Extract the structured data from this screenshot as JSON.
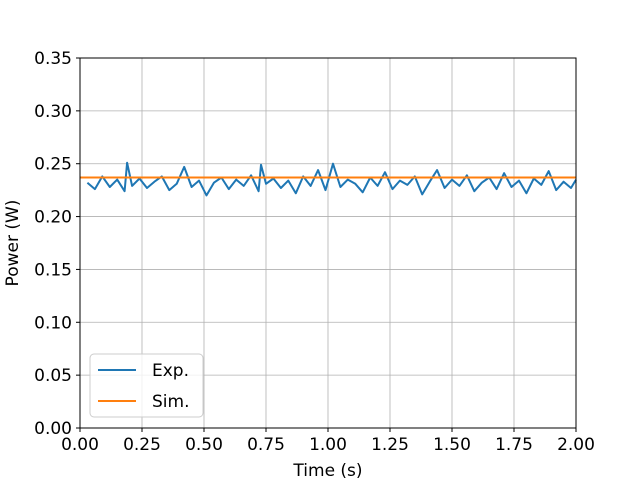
{
  "chart_data": {
    "type": "line",
    "title": "",
    "xlabel": "Time (s)",
    "ylabel": "Power (W)",
    "xlim": [
      0,
      2.0
    ],
    "ylim": [
      0,
      0.35
    ],
    "xticks": [
      0.0,
      0.25,
      0.5,
      0.75,
      1.0,
      1.25,
      1.5,
      1.75,
      2.0
    ],
    "xtick_labels": [
      "0.00",
      "0.25",
      "0.50",
      "0.75",
      "1.00",
      "1.25",
      "1.50",
      "1.75",
      "2.00"
    ],
    "yticks": [
      0.0,
      0.05,
      0.1,
      0.15,
      0.2,
      0.25,
      0.3,
      0.35
    ],
    "ytick_labels": [
      "0.00",
      "0.05",
      "0.10",
      "0.15",
      "0.20",
      "0.25",
      "0.30",
      "0.35"
    ],
    "grid": true,
    "legend_position": "lower-left",
    "series": [
      {
        "name": "Exp.",
        "color": "#1f77b4",
        "x": [
          0.03,
          0.06,
          0.09,
          0.12,
          0.15,
          0.18,
          0.19,
          0.21,
          0.24,
          0.27,
          0.3,
          0.33,
          0.36,
          0.39,
          0.42,
          0.45,
          0.48,
          0.51,
          0.54,
          0.57,
          0.6,
          0.63,
          0.66,
          0.69,
          0.72,
          0.73,
          0.75,
          0.78,
          0.81,
          0.84,
          0.87,
          0.9,
          0.93,
          0.96,
          0.99,
          1.02,
          1.05,
          1.08,
          1.11,
          1.14,
          1.17,
          1.2,
          1.23,
          1.26,
          1.29,
          1.32,
          1.35,
          1.38,
          1.41,
          1.44,
          1.47,
          1.5,
          1.53,
          1.56,
          1.59,
          1.62,
          1.65,
          1.68,
          1.71,
          1.74,
          1.77,
          1.8,
          1.83,
          1.86,
          1.89,
          1.92,
          1.95,
          1.98,
          2.0
        ],
        "values": [
          0.232,
          0.226,
          0.238,
          0.228,
          0.235,
          0.224,
          0.251,
          0.229,
          0.236,
          0.227,
          0.233,
          0.238,
          0.225,
          0.231,
          0.247,
          0.228,
          0.234,
          0.22,
          0.232,
          0.237,
          0.226,
          0.235,
          0.229,
          0.239,
          0.224,
          0.249,
          0.231,
          0.236,
          0.227,
          0.234,
          0.222,
          0.238,
          0.229,
          0.244,
          0.225,
          0.25,
          0.228,
          0.235,
          0.231,
          0.223,
          0.237,
          0.229,
          0.242,
          0.226,
          0.234,
          0.23,
          0.238,
          0.221,
          0.233,
          0.244,
          0.227,
          0.235,
          0.229,
          0.239,
          0.224,
          0.232,
          0.237,
          0.226,
          0.241,
          0.228,
          0.234,
          0.222,
          0.236,
          0.23,
          0.243,
          0.225,
          0.233,
          0.227,
          0.235
        ]
      },
      {
        "name": "Sim.",
        "color": "#ff7f0e",
        "x": [
          0.0,
          2.0
        ],
        "values": [
          0.237,
          0.237
        ]
      }
    ]
  }
}
